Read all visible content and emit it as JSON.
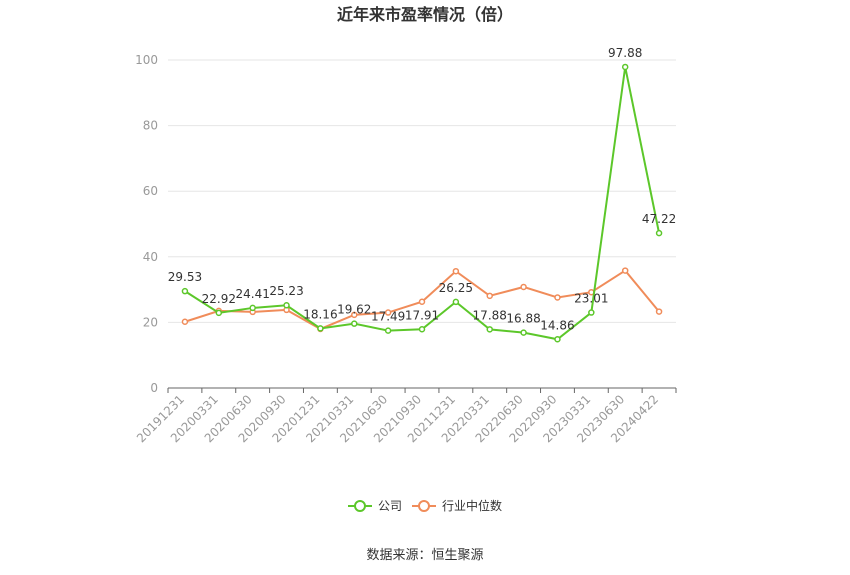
{
  "chart_data": {
    "type": "line",
    "title": "近年来市盈率情况（倍）",
    "categories": [
      "20191231",
      "20200331",
      "20200630",
      "20200930",
      "20201231",
      "20210331",
      "20210630",
      "20210930",
      "20211231",
      "20220331",
      "20220630",
      "20220930",
      "20230331",
      "20230630",
      "20240422"
    ],
    "series": [
      {
        "name": "公司",
        "color": "#5cc72a",
        "values": [
          29.53,
          22.92,
          24.41,
          25.23,
          18.16,
          19.62,
          17.49,
          17.91,
          26.25,
          17.88,
          16.88,
          14.86,
          23.01,
          97.88,
          47.22
        ],
        "labels": [
          "29.53",
          "22.92",
          "24.41",
          "25.23",
          "18.16",
          "19.62",
          "17.49",
          "17.91",
          "26.25",
          "17.88",
          "16.88",
          "14.86",
          "23.01",
          "97.88",
          "47.22"
        ]
      },
      {
        "name": "行业中位数",
        "color": "#f08c5a",
        "values": [
          20.2,
          23.5,
          23.2,
          23.8,
          18.0,
          22.3,
          23.0,
          26.3,
          35.6,
          28.1,
          30.8,
          27.6,
          29.2,
          35.8,
          23.3
        ]
      }
    ],
    "ylim": [
      0,
      100
    ],
    "yticks": [
      "0",
      "20",
      "40",
      "60",
      "80",
      "100"
    ],
    "grid": true,
    "legend_position": "bottom",
    "source": "数据来源：恒生聚源"
  }
}
